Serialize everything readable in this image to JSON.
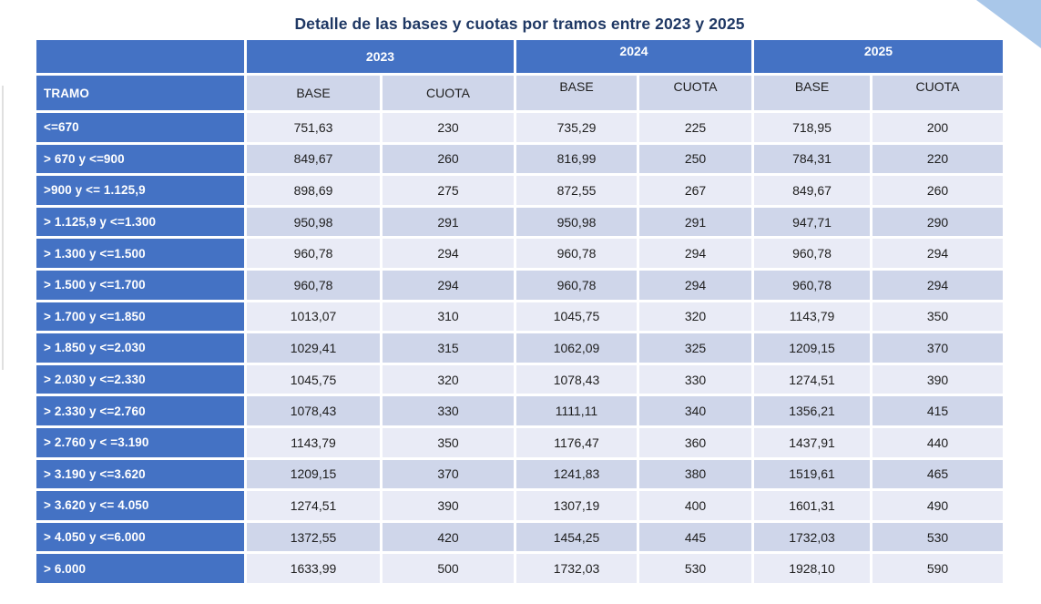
{
  "title": "Detalle de las bases y cuotas por tramos entre 2023 y 2025",
  "table": {
    "tramo_header": "TRAMO",
    "year_headers": [
      "2023",
      "2024",
      "2025"
    ],
    "column_headers": [
      "BASE",
      "CUOTA"
    ],
    "rows": [
      {
        "tramo": "<=670",
        "values": [
          "751,63",
          "230",
          "735,29",
          "225",
          "718,95",
          "200"
        ]
      },
      {
        "tramo": "> 670 y <=900",
        "values": [
          "849,67",
          "260",
          "816,99",
          "250",
          "784,31",
          "220"
        ]
      },
      {
        "tramo": ">900 y <= 1.125,9",
        "values": [
          "898,69",
          "275",
          "872,55",
          "267",
          "849,67",
          "260"
        ]
      },
      {
        "tramo": "> 1.125,9 y <=1.300",
        "values": [
          "950,98",
          "291",
          "950,98",
          "291",
          "947,71",
          "290"
        ]
      },
      {
        "tramo": "> 1.300 y <=1.500",
        "values": [
          "960,78",
          "294",
          "960,78",
          "294",
          "960,78",
          "294"
        ]
      },
      {
        "tramo": "> 1.500 y <=1.700",
        "values": [
          "960,78",
          "294",
          "960,78",
          "294",
          "960,78",
          "294"
        ]
      },
      {
        "tramo": "> 1.700 y <=1.850",
        "values": [
          "1013,07",
          "310",
          "1045,75",
          "320",
          "1143,79",
          "350"
        ]
      },
      {
        "tramo": "> 1.850 y <=2.030",
        "values": [
          "1029,41",
          "315",
          "1062,09",
          "325",
          "1209,15",
          "370"
        ]
      },
      {
        "tramo": "> 2.030 y <=2.330",
        "values": [
          "1045,75",
          "320",
          "1078,43",
          "330",
          "1274,51",
          "390"
        ]
      },
      {
        "tramo": "> 2.330 y <=2.760",
        "values": [
          "1078,43",
          "330",
          "1111,11",
          "340",
          "1356,21",
          "415"
        ]
      },
      {
        "tramo": "> 2.760 y < =3.190",
        "values": [
          "1143,79",
          "350",
          "1176,47",
          "360",
          "1437,91",
          "440"
        ]
      },
      {
        "tramo": "> 3.190 y <=3.620",
        "values": [
          "1209,15",
          "370",
          "1241,83",
          "380",
          "1519,61",
          "465"
        ]
      },
      {
        "tramo": "> 3.620 y <= 4.050",
        "values": [
          "1274,51",
          "390",
          "1307,19",
          "400",
          "1601,31",
          "490"
        ]
      },
      {
        "tramo": "> 4.050 y <=6.000",
        "values": [
          "1372,55",
          "420",
          "1454,25",
          "445",
          "1732,03",
          "530"
        ]
      },
      {
        "tramo": "> 6.000",
        "values": [
          "1633,99",
          "500",
          "1732,03",
          "530",
          "1928,10",
          "590"
        ]
      }
    ]
  },
  "colors": {
    "header_blue": "#4472C4",
    "row_light": "#E9EBF6",
    "row_dark": "#CFD6EA",
    "subheader_bg": "#CFD6EA",
    "title_navy": "#1F3864",
    "corner_triangle": "#A9C7E9",
    "cell_text": "#1E1E1E",
    "header_text": "#FFFFFF"
  }
}
